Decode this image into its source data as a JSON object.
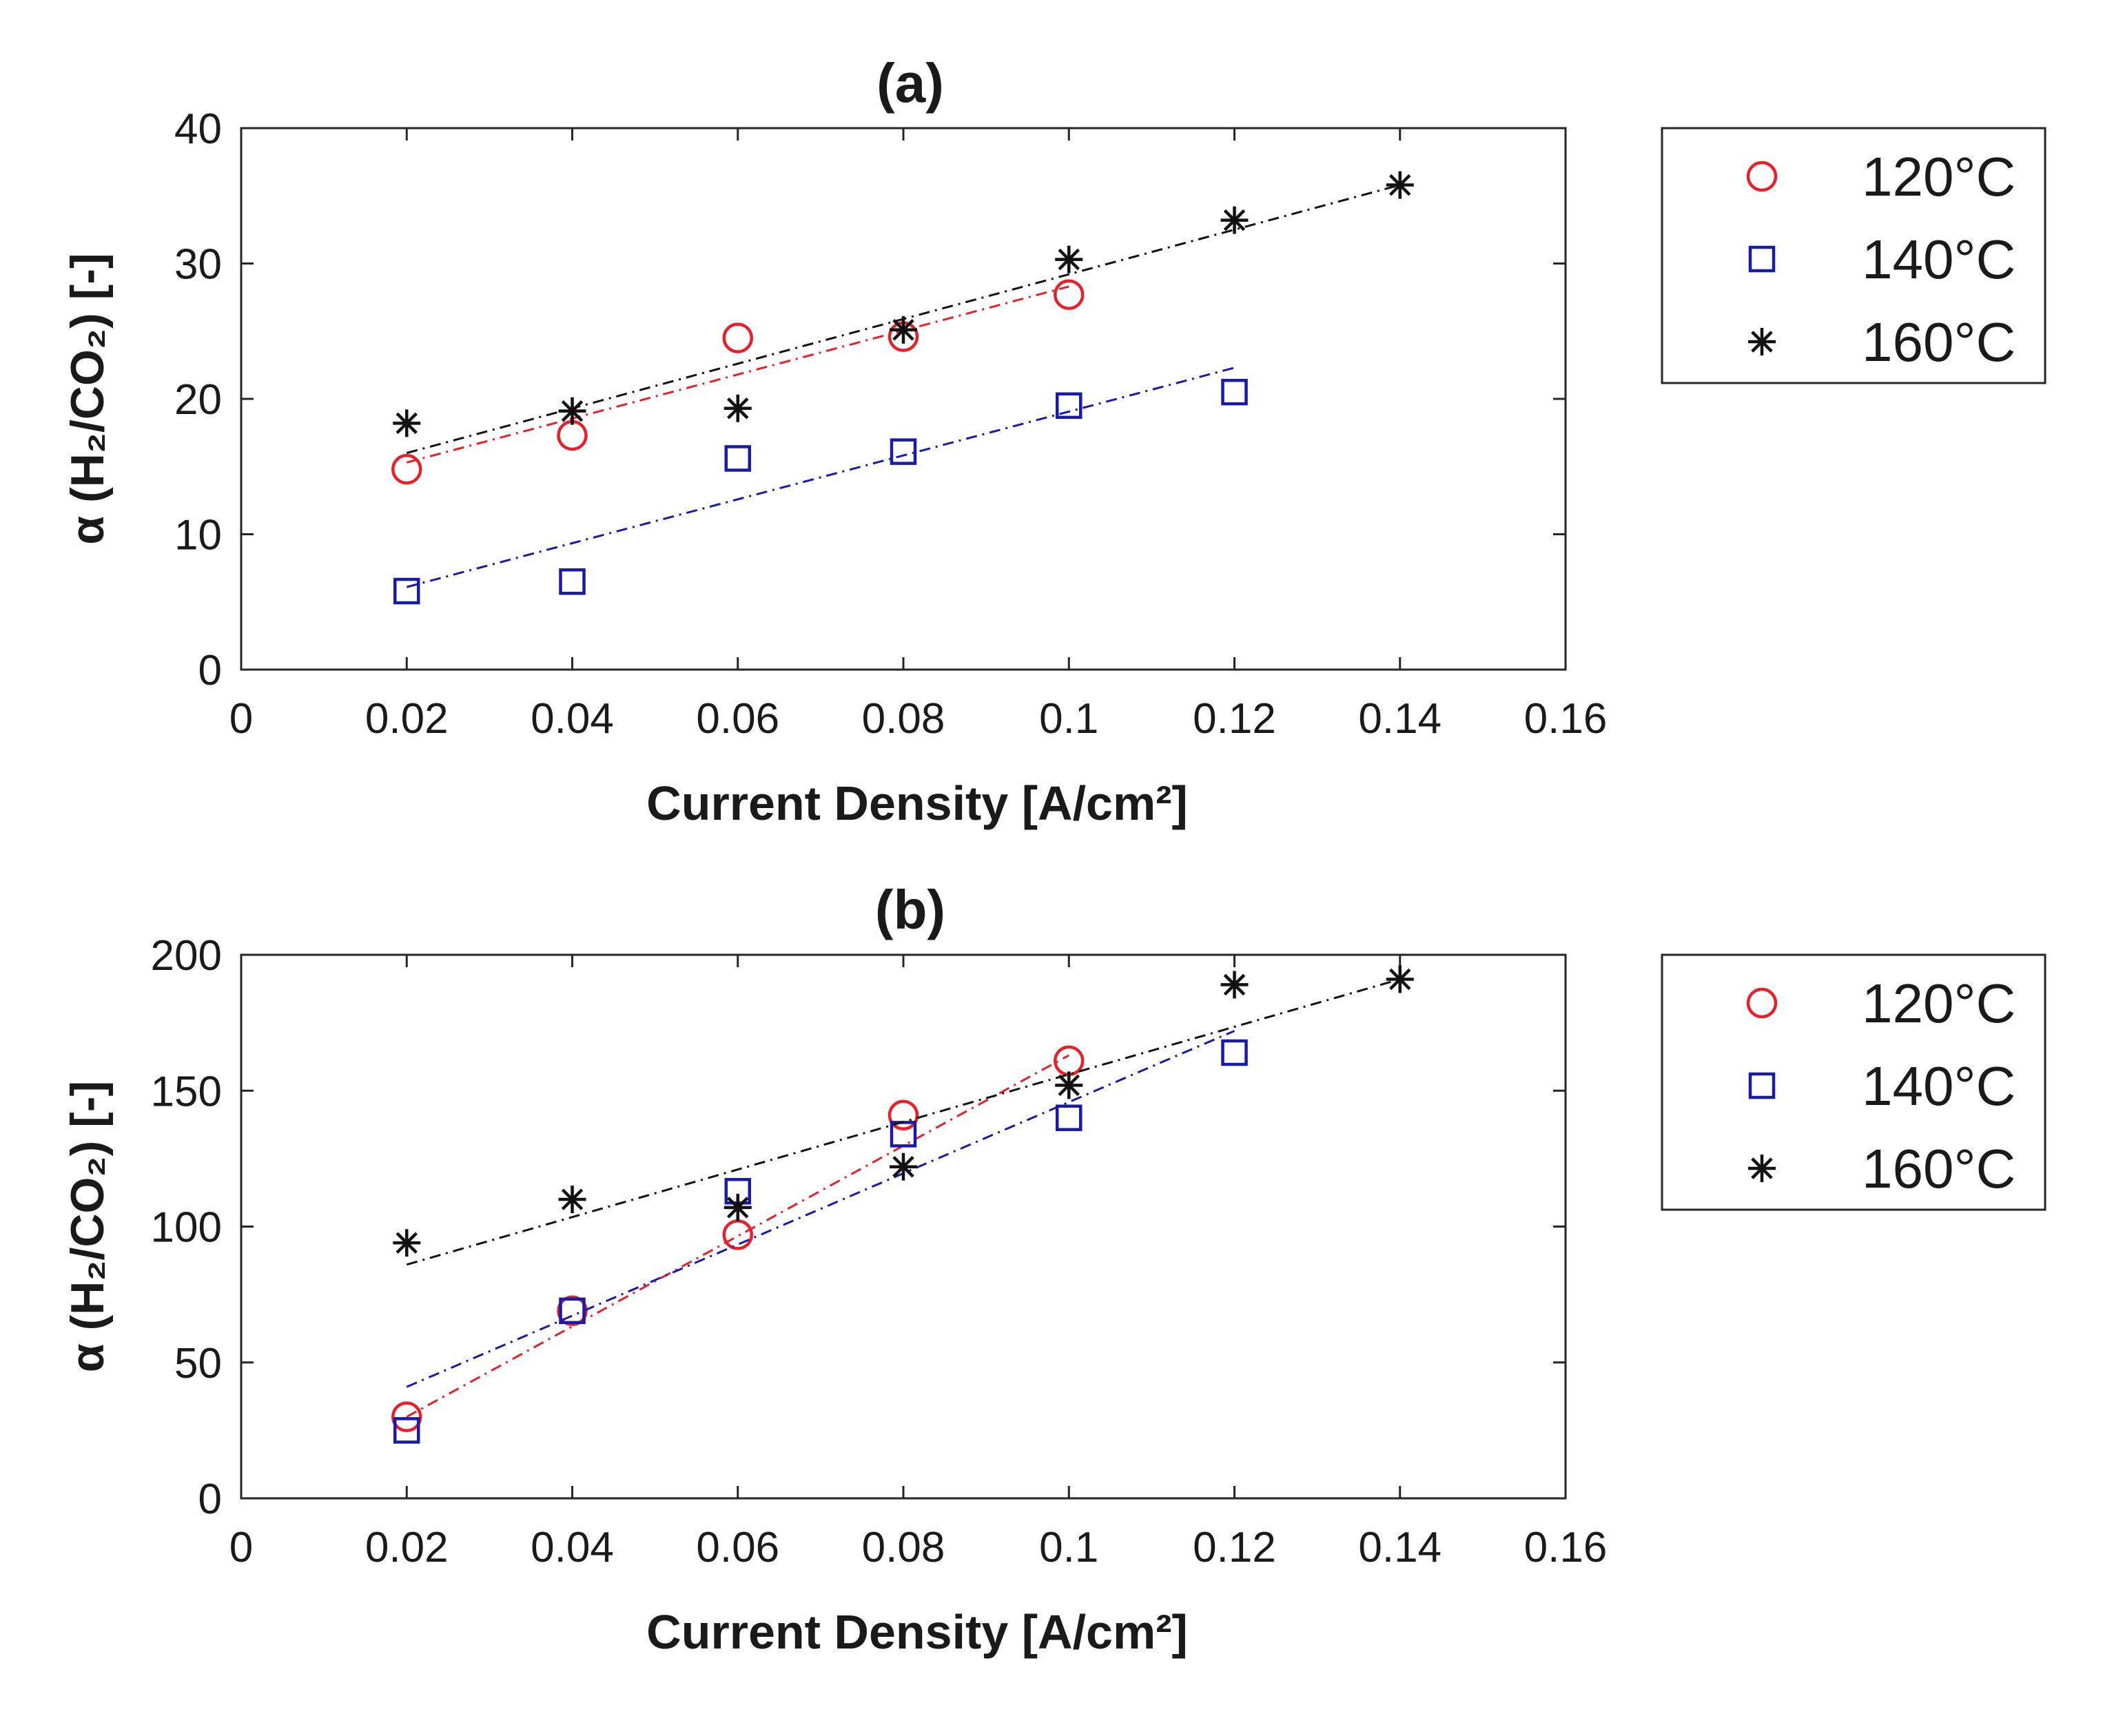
{
  "chart_data": [
    {
      "type": "scatter",
      "title": "(a)",
      "xlabel": "Current Density [A/cm²]",
      "ylabel": "α (H₂/CO₂) [-]",
      "xlim": [
        0,
        0.16
      ],
      "ylim": [
        0,
        40
      ],
      "xticks": [
        0,
        0.02,
        0.04,
        0.06,
        0.08,
        0.1,
        0.12,
        0.14,
        0.16
      ],
      "xtick_labels": [
        "0",
        "0.02",
        "0.04",
        "0.06",
        "0.08",
        "0.1",
        "0.12",
        "0.14",
        "0.16"
      ],
      "yticks": [
        0,
        10,
        20,
        30,
        40
      ],
      "ytick_labels": [
        "0",
        "10",
        "20",
        "30",
        "40"
      ],
      "legend_position": "outside-right",
      "series": [
        {
          "name": "120°C",
          "marker": "circle",
          "color": "#e8202a",
          "x": [
            0.02,
            0.04,
            0.06,
            0.08,
            0.1
          ],
          "y": [
            14.8,
            17.3,
            24.5,
            24.6,
            27.7
          ],
          "fit": [
            [
              0.02,
              15.3
            ],
            [
              0.1,
              28.3
            ]
          ]
        },
        {
          "name": "140°C",
          "marker": "square",
          "color": "#1a1aa8",
          "x": [
            0.02,
            0.04,
            0.06,
            0.08,
            0.1,
            0.12
          ],
          "y": [
            5.8,
            6.5,
            15.6,
            16.1,
            19.5,
            20.5
          ],
          "fit": [
            [
              0.02,
              6.1
            ],
            [
              0.12,
              22.3
            ]
          ]
        },
        {
          "name": "160°C",
          "marker": "asterisk",
          "color": "#111111",
          "x": [
            0.02,
            0.04,
            0.06,
            0.08,
            0.1,
            0.12,
            0.14
          ],
          "y": [
            18.2,
            19.1,
            19.3,
            25.1,
            30.3,
            33.2,
            35.8
          ],
          "fit": [
            [
              0.02,
              16.0
            ],
            [
              0.14,
              35.8
            ]
          ]
        }
      ]
    },
    {
      "type": "scatter",
      "title": "(b)",
      "xlabel": "Current Density [A/cm²]",
      "ylabel": "α (H₂/CO₂) [-]",
      "xlim": [
        0,
        0.16
      ],
      "ylim": [
        0,
        200
      ],
      "xticks": [
        0,
        0.02,
        0.04,
        0.06,
        0.08,
        0.1,
        0.12,
        0.14,
        0.16
      ],
      "xtick_labels": [
        "0",
        "0.02",
        "0.04",
        "0.06",
        "0.08",
        "0.1",
        "0.12",
        "0.14",
        "0.16"
      ],
      "yticks": [
        0,
        50,
        100,
        150,
        200
      ],
      "ytick_labels": [
        "0",
        "50",
        "100",
        "150",
        "200"
      ],
      "legend_position": "outside-right",
      "series": [
        {
          "name": "120°C",
          "marker": "circle",
          "color": "#e8202a",
          "x": [
            0.02,
            0.04,
            0.06,
            0.08,
            0.1
          ],
          "y": [
            30,
            69,
            97,
            141,
            161
          ],
          "fit": [
            [
              0.02,
              30.0
            ],
            [
              0.1,
              163.0
            ]
          ]
        },
        {
          "name": "140°C",
          "marker": "square",
          "color": "#1a1aa8",
          "x": [
            0.02,
            0.04,
            0.06,
            0.08,
            0.1,
            0.12
          ],
          "y": [
            25,
            69,
            113,
            134,
            140,
            164
          ],
          "fit": [
            [
              0.02,
              41.0
            ],
            [
              0.12,
              172.0
            ]
          ]
        },
        {
          "name": "160°C",
          "marker": "asterisk",
          "color": "#111111",
          "x": [
            0.02,
            0.04,
            0.06,
            0.08,
            0.1,
            0.12,
            0.14
          ],
          "y": [
            94,
            110,
            107,
            122,
            152,
            189,
            191
          ],
          "fit": [
            [
              0.02,
              86.0
            ],
            [
              0.14,
              191.0
            ]
          ]
        }
      ]
    }
  ]
}
